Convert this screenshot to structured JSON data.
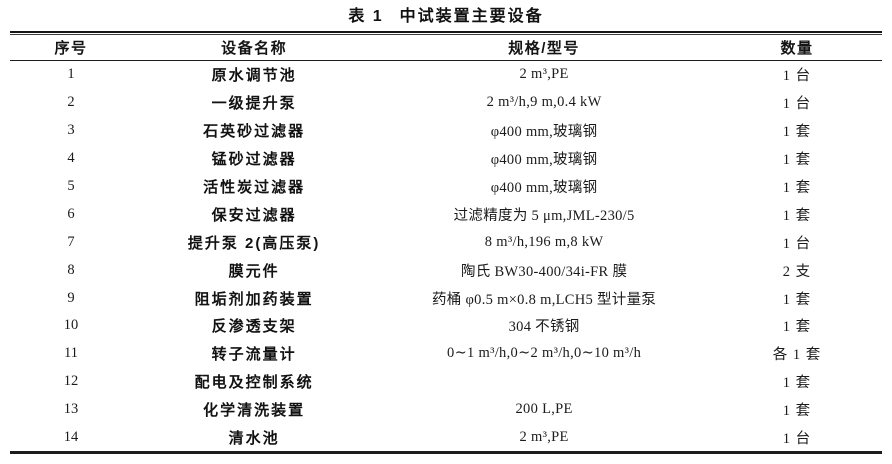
{
  "page": {
    "background": "#ffffff",
    "text_color": "#1b1b1b",
    "rule_color": "#1c1c1c"
  },
  "table": {
    "title_prefix": "表 1",
    "title": "中试装置主要设备",
    "columns": [
      "序号",
      "设备名称",
      "规格/型号",
      "数量"
    ],
    "rows": [
      {
        "no": "1",
        "name": "原水调节池",
        "spec": "2 m³,PE",
        "qty": "1 台"
      },
      {
        "no": "2",
        "name": "一级提升泵",
        "spec": "2 m³/h,9 m,0.4 kW",
        "qty": "1 台"
      },
      {
        "no": "3",
        "name": "石英砂过滤器",
        "spec": "φ400 mm,玻璃钢",
        "qty": "1 套"
      },
      {
        "no": "4",
        "name": "锰砂过滤器",
        "spec": "φ400 mm,玻璃钢",
        "qty": "1 套"
      },
      {
        "no": "5",
        "name": "活性炭过滤器",
        "spec": "φ400 mm,玻璃钢",
        "qty": "1 套"
      },
      {
        "no": "6",
        "name": "保安过滤器",
        "spec": "过滤精度为 5 μm,JML-230/5",
        "qty": "1 套"
      },
      {
        "no": "7",
        "name": "提升泵 2(高压泵)",
        "spec": "8 m³/h,196 m,8 kW",
        "qty": "1 台"
      },
      {
        "no": "8",
        "name": "膜元件",
        "spec": "陶氏 BW30-400/34i-FR 膜",
        "qty": "2 支"
      },
      {
        "no": "9",
        "name": "阻垢剂加药装置",
        "spec": "药桶 φ0.5 m×0.8 m,LCH5 型计量泵",
        "qty": "1 套"
      },
      {
        "no": "10",
        "name": "反渗透支架",
        "spec": "304 不锈钢",
        "qty": "1 套"
      },
      {
        "no": "11",
        "name": "转子流量计",
        "spec": "0∼1 m³/h,0∼2 m³/h,0∼10 m³/h",
        "qty": "各 1 套"
      },
      {
        "no": "12",
        "name": "配电及控制系统",
        "spec": "",
        "qty": "1 套"
      },
      {
        "no": "13",
        "name": "化学清洗装置",
        "spec": "200 L,PE",
        "qty": "1 套"
      },
      {
        "no": "14",
        "name": "清水池",
        "spec": "2 m³,PE",
        "qty": "1 台"
      }
    ]
  }
}
